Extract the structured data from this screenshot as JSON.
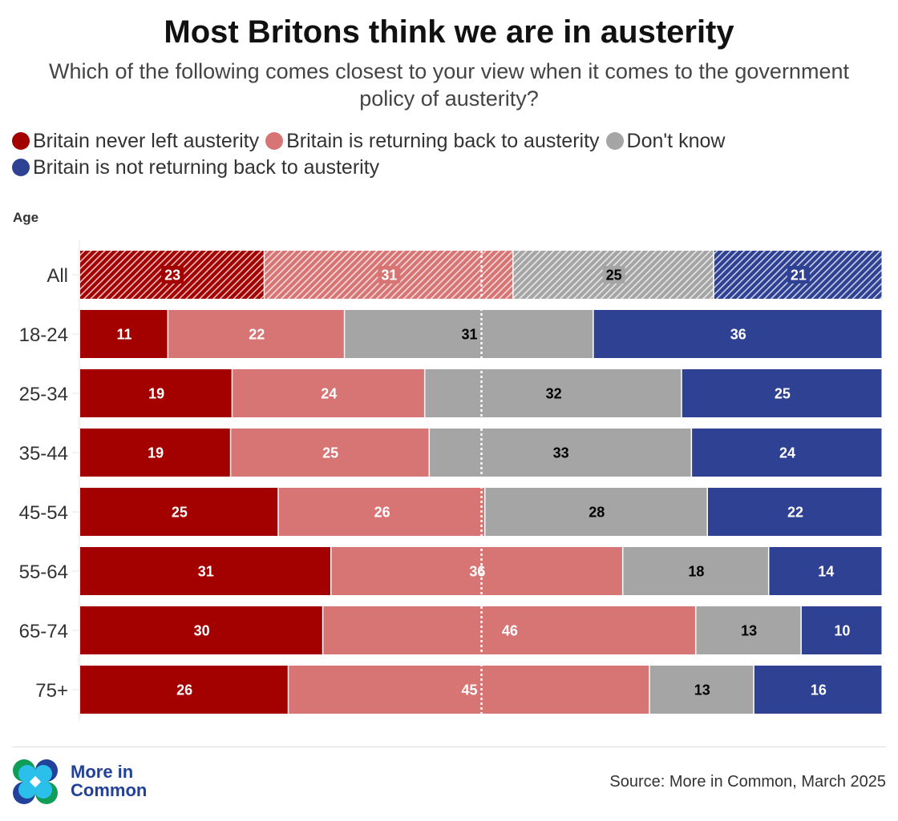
{
  "title": "Most Britons think we are in austerity",
  "subtitle": "Which of the following comes closest to your view when it comes to the government policy of austerity?",
  "legend": [
    {
      "label": "Britain never left austerity",
      "color": "#a30000"
    },
    {
      "label": "Britain is returning back to austerity",
      "color": "#d77575"
    },
    {
      "label": "Don't know",
      "color": "#a5a5a5"
    },
    {
      "label": "Britain is not returning back to austerity",
      "color": "#2e4193"
    }
  ],
  "axis_title": "Age",
  "source": "Source: More in Common, March 2025",
  "brand": {
    "line1": "More in",
    "line2": "Common"
  },
  "chart_data": {
    "type": "bar",
    "orientation": "horizontal",
    "stacked": true,
    "title": "Most Britons think we are in austerity",
    "subtitle": "Which of the following comes closest to your view when it comes to the government policy of austerity?",
    "ylabel": "Age",
    "xlabel": "",
    "xlim": [
      0,
      100
    ],
    "reference_line": 50,
    "legend_position": "top-left",
    "categories": [
      "All",
      "18-24",
      "25-34",
      "35-44",
      "45-54",
      "55-64",
      "65-74",
      "75+"
    ],
    "highlight_category": "All",
    "series": [
      {
        "name": "Britain never left austerity",
        "color": "#a30000",
        "label_color": "#ffffff",
        "values": [
          23,
          11,
          19,
          19,
          25,
          31,
          30,
          26
        ]
      },
      {
        "name": "Britain is returning back to austerity",
        "color": "#d77575",
        "label_color": "#ffffff",
        "values": [
          31,
          22,
          24,
          25,
          26,
          36,
          46,
          45
        ]
      },
      {
        "name": "Don't know",
        "color": "#a5a5a5",
        "label_color": "#000000",
        "values": [
          25,
          31,
          32,
          33,
          28,
          18,
          13,
          13
        ]
      },
      {
        "name": "Britain is not returning back to austerity",
        "color": "#2e4193",
        "label_color": "#ffffff",
        "values": [
          21,
          36,
          25,
          24,
          22,
          14,
          10,
          16
        ]
      }
    ]
  }
}
